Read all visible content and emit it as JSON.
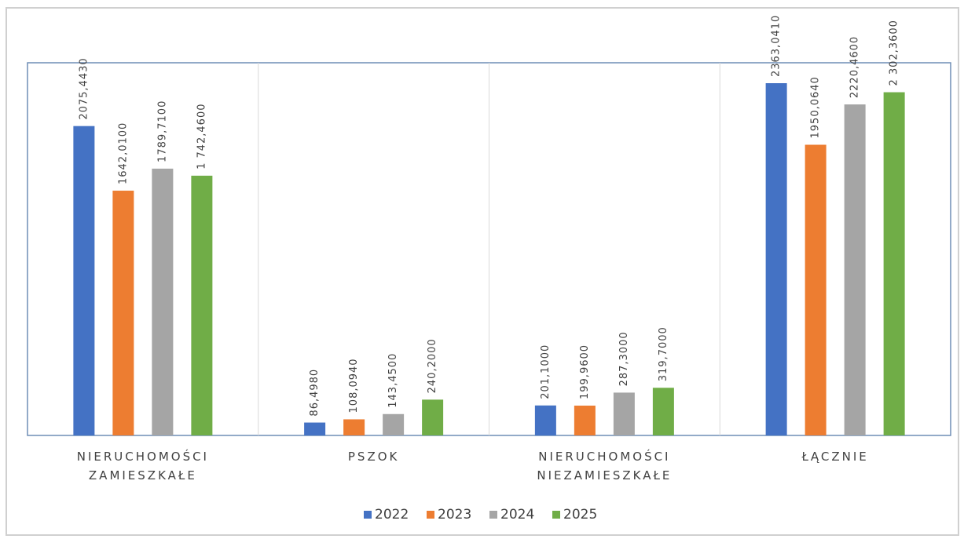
{
  "chart_data": {
    "type": "bar",
    "categories": [
      "NIERUCHOMOŚCI ZAMIESZKAŁE",
      "PSZOK",
      "NIERUCHOMOŚCI NIEZAMIESZKAŁE",
      "ŁĄCZNIE"
    ],
    "ylim": [
      0,
      2500
    ],
    "series": [
      {
        "name": "2022",
        "color": "#4472c4",
        "values": [
          2075.443,
          86.498,
          201.1,
          2363.041
        ],
        "value_labels": [
          "2075,4430",
          "86,4980",
          "201,1000",
          "2363,0410"
        ]
      },
      {
        "name": "2023",
        "color": "#ed7d31",
        "values": [
          1642.01,
          108.094,
          199.96,
          1950.064
        ],
        "value_labels": [
          "1642,0100",
          "108,0940",
          "199,9600",
          "1950,0640"
        ]
      },
      {
        "name": "2024",
        "color": "#a5a5a5",
        "values": [
          1789.71,
          143.45,
          287.3,
          2220.46
        ],
        "value_labels": [
          "1789,7100",
          "143,4500",
          "287,3000",
          "2220,4600"
        ]
      },
      {
        "name": "2025",
        "color": "#70ad47",
        "values": [
          1742.46,
          240.2,
          319.7,
          2302.36
        ],
        "value_labels": [
          "1 742,4600",
          "240,2000",
          "319,7000",
          "2 302,3600"
        ]
      }
    ]
  }
}
